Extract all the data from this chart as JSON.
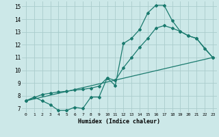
{
  "xlabel": "Humidex (Indice chaleur)",
  "bg_color": "#cce8e8",
  "grid_color": "#aacccc",
  "line_color": "#1a7a6e",
  "xlim": [
    -0.5,
    23.5
  ],
  "ylim": [
    6.7,
    15.4
  ],
  "xticks": [
    0,
    1,
    2,
    3,
    4,
    5,
    6,
    7,
    8,
    9,
    10,
    11,
    12,
    13,
    14,
    15,
    16,
    17,
    18,
    19,
    20,
    21,
    22,
    23
  ],
  "yticks": [
    7,
    8,
    9,
    10,
    11,
    12,
    13,
    14,
    15
  ],
  "line1_x": [
    0,
    1,
    2,
    3,
    4,
    5,
    6,
    7,
    8,
    9,
    10,
    11,
    12,
    13,
    14,
    15,
    16,
    17,
    18,
    19,
    20,
    21,
    22,
    23
  ],
  "line1_y": [
    7.6,
    7.9,
    7.6,
    7.3,
    6.85,
    6.85,
    7.1,
    7.0,
    7.9,
    7.9,
    9.4,
    8.8,
    12.1,
    12.5,
    13.2,
    14.5,
    15.1,
    15.1,
    13.9,
    13.05,
    12.7,
    12.5,
    11.7,
    11.0
  ],
  "line2_x": [
    0,
    2,
    3,
    4,
    5,
    6,
    7,
    8,
    9,
    10,
    11,
    12,
    13,
    14,
    15,
    16,
    17,
    18,
    19,
    20,
    21,
    23
  ],
  "line2_y": [
    7.6,
    8.1,
    8.2,
    8.3,
    8.35,
    8.45,
    8.5,
    8.6,
    8.75,
    9.4,
    9.2,
    10.2,
    11.0,
    11.8,
    12.5,
    13.3,
    13.5,
    13.3,
    13.05,
    12.7,
    12.5,
    11.0
  ],
  "line3_x": [
    0,
    23
  ],
  "line3_y": [
    7.6,
    11.0
  ]
}
